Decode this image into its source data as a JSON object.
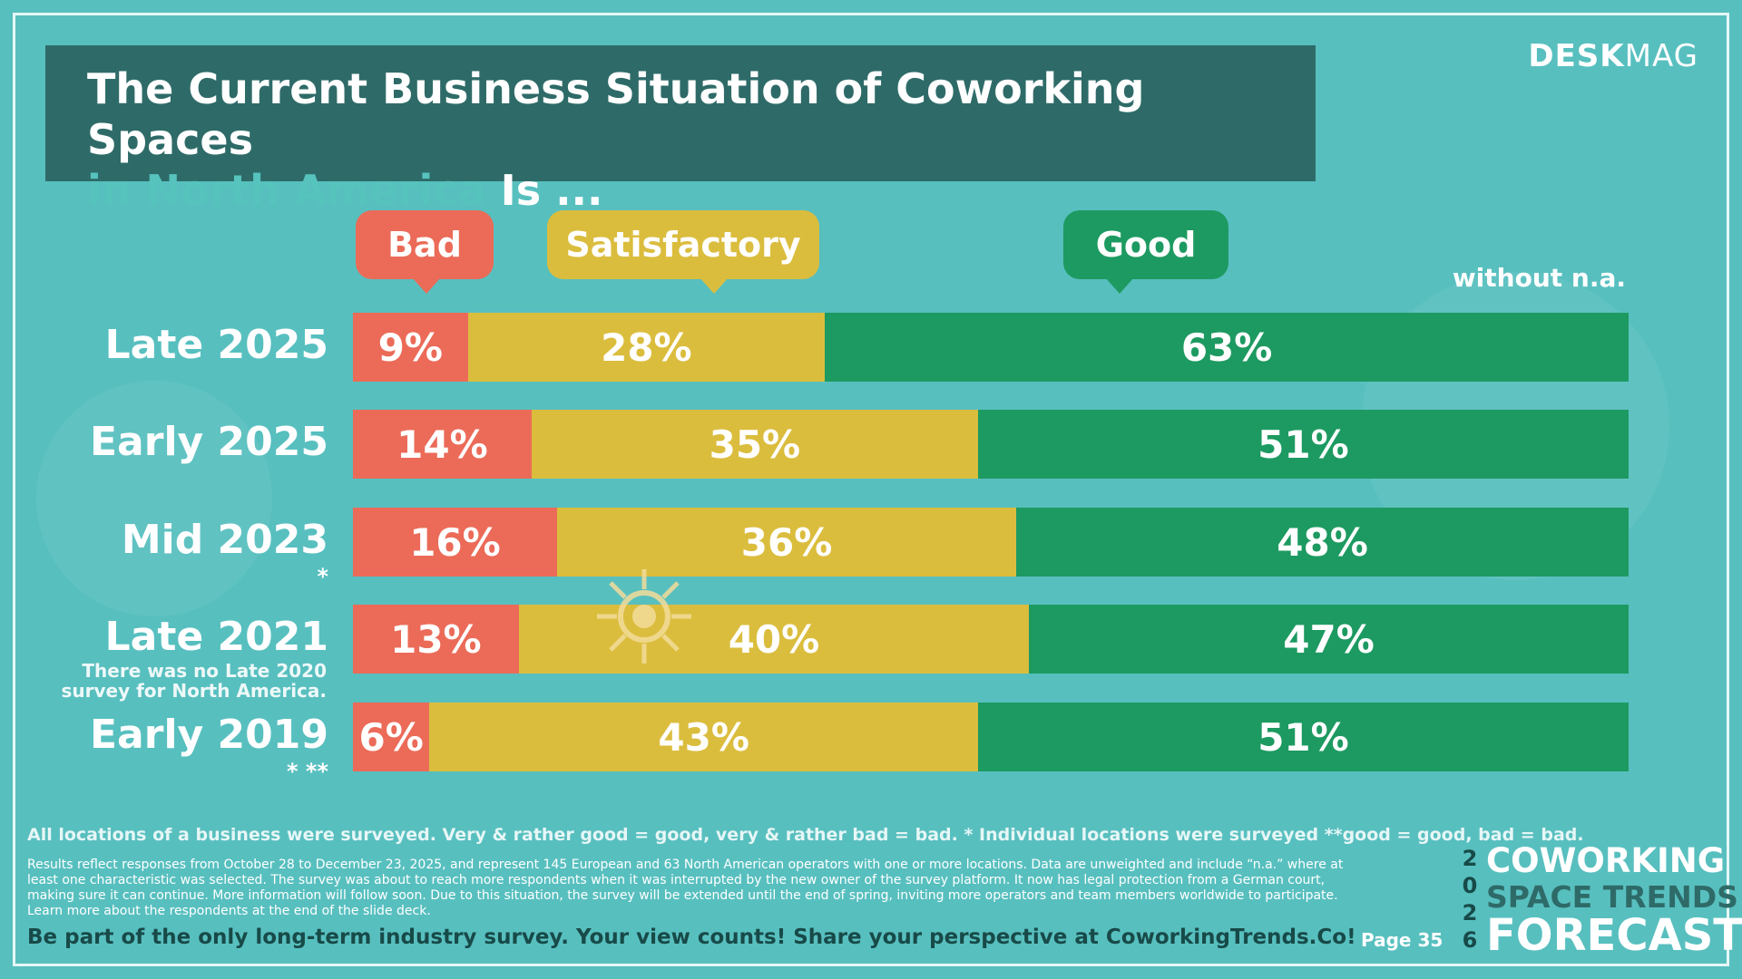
{
  "title": {
    "line1": "The Current Business Situation of Coworking Spaces",
    "line2_highlight": "in North America",
    "line2_rest": " Is ..."
  },
  "brand": {
    "bold": "DESK",
    "light": "MAG"
  },
  "note_right": "without n.a.",
  "legend": {
    "bad": "Bad",
    "satisfactory": "Satisfactory",
    "good": "Good"
  },
  "rows": [
    {
      "label": "Late 2025",
      "sub": "",
      "mark": ""
    },
    {
      "label": "Early 2025",
      "sub": "",
      "mark": ""
    },
    {
      "label": "Mid 2023",
      "sub": "",
      "mark": "*"
    },
    {
      "label": "Late 2021",
      "sub": "There was no Late 2020 survey for North America.",
      "mark": ""
    },
    {
      "label": "Early 2019",
      "sub": "",
      "mark": "* **"
    }
  ],
  "chart_data": {
    "type": "bar",
    "orientation": "horizontal-stacked-100",
    "categories": [
      "Late 2025",
      "Early 2025",
      "Mid 2023",
      "Late 2021",
      "Early 2019"
    ],
    "series": [
      {
        "name": "Bad",
        "values": [
          9,
          14,
          16,
          13,
          6
        ],
        "color": "#eb6b58"
      },
      {
        "name": "Satisfactory",
        "values": [
          28,
          35,
          36,
          40,
          43
        ],
        "color": "#dbbd3e"
      },
      {
        "name": "Good",
        "values": [
          63,
          51,
          48,
          47,
          51
        ],
        "color": "#1d9a61"
      }
    ],
    "unit": "%",
    "legend_position": "top"
  },
  "footer": {
    "line1": "All locations of a business were surveyed. Very & rather good = good, very & rather bad = bad. * Individual locations were surveyed **good = good, bad = bad.",
    "line2": "Results reflect responses from October 28 to December 23, 2025, and represent 145 European and 63 North American operators with one or more locations. Data are unweighted and include “n.a.” where at least one characteristic was selected. The survey was about to reach more respondents when it was interrupted by the new owner of the survey platform. It now has legal protection from a German court, making sure it can continue. More information will follow soon. Due to this situation, the survey will be extended until the end of spring, inviting more operators and team members worldwide to participate. Learn more about the respondents at the end of the slide deck.",
    "cta": "Be part of the only long-term industry survey. Your view counts! Share your perspective at CoworkingTrends.Co!",
    "page": "Page 35"
  },
  "forecast": {
    "digits": [
      "2",
      "0",
      "2",
      "6"
    ],
    "line1": "COWORKING",
    "line2": "SPACE TRENDS",
    "line3": "FORECAST"
  }
}
